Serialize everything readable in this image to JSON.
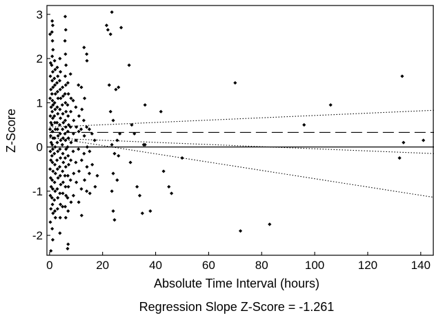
{
  "chart_data": {
    "type": "scatter",
    "title": "",
    "xlabel": "Absolute Time Interval (hours)",
    "ylabel": "Z-Score",
    "caption": "Regression Slope Z-Score = -1.261",
    "xlim": [
      -1,
      145
    ],
    "ylim": [
      -2.45,
      3.2
    ],
    "x_ticks": [
      0,
      20,
      40,
      60,
      80,
      100,
      120,
      140
    ],
    "y_ticks": [
      -2,
      -1,
      0,
      1,
      2,
      3
    ],
    "grid": false,
    "legend": "none",
    "marker_color": "#000000",
    "series": [
      {
        "points": [
          [
            0.2,
            2.55
          ],
          [
            0.4,
            1.9
          ],
          [
            0.3,
            1.6
          ],
          [
            0.5,
            1.3
          ],
          [
            0.2,
            1.1
          ],
          [
            0.6,
            0.9
          ],
          [
            0.3,
            0.7
          ],
          [
            0.5,
            0.55
          ],
          [
            0.2,
            0.4
          ],
          [
            0.4,
            0.25
          ],
          [
            0.6,
            0.1
          ],
          [
            0.3,
            -0.1
          ],
          [
            0.5,
            -0.3
          ],
          [
            0.2,
            -0.5
          ],
          [
            0.4,
            -0.7
          ],
          [
            0.6,
            -0.9
          ],
          [
            0.3,
            -1.1
          ],
          [
            0.5,
            -1.4
          ],
          [
            0.3,
            -1.7
          ],
          [
            0.5,
            -2.35
          ],
          [
            1.0,
            2.85
          ],
          [
            1.2,
            2.75
          ],
          [
            0.9,
            2.6
          ],
          [
            1.1,
            2.4
          ],
          [
            1.3,
            2.2
          ],
          [
            1.0,
            2.05
          ],
          [
            0.8,
            1.85
          ],
          [
            1.2,
            1.7
          ],
          [
            1.0,
            1.5
          ],
          [
            1.3,
            1.35
          ],
          [
            0.9,
            1.2
          ],
          [
            1.1,
            1.05
          ],
          [
            1.3,
            0.95
          ],
          [
            1.0,
            0.8
          ],
          [
            1.2,
            0.65
          ],
          [
            0.9,
            0.5
          ],
          [
            1.1,
            0.35
          ],
          [
            1.3,
            0.2
          ],
          [
            1.0,
            0.05
          ],
          [
            1.2,
            -0.05
          ],
          [
            0.9,
            -0.2
          ],
          [
            1.1,
            -0.35
          ],
          [
            1.3,
            -0.55
          ],
          [
            1.0,
            -0.75
          ],
          [
            1.2,
            -0.95
          ],
          [
            0.9,
            -1.15
          ],
          [
            1.1,
            -1.3
          ],
          [
            1.3,
            -1.5
          ],
          [
            1.0,
            -1.85
          ],
          [
            1.2,
            -2.1
          ],
          [
            1.9,
            1.95
          ],
          [
            2.1,
            1.75
          ],
          [
            1.8,
            1.55
          ],
          [
            2.0,
            1.4
          ],
          [
            2.2,
            1.2
          ],
          [
            1.9,
            1.0
          ],
          [
            2.1,
            0.85
          ],
          [
            1.8,
            0.7
          ],
          [
            2.0,
            0.55
          ],
          [
            2.2,
            0.4
          ],
          [
            1.9,
            0.2
          ],
          [
            2.1,
            0.0
          ],
          [
            1.8,
            -0.15
          ],
          [
            2.0,
            -0.4
          ],
          [
            2.2,
            -0.6
          ],
          [
            1.9,
            -0.8
          ],
          [
            2.1,
            -1.0
          ],
          [
            1.8,
            -1.2
          ],
          [
            2.0,
            -1.45
          ],
          [
            2.2,
            -1.6
          ],
          [
            2.9,
            1.8
          ],
          [
            3.1,
            1.6
          ],
          [
            2.8,
            1.45
          ],
          [
            3.0,
            1.25
          ],
          [
            3.2,
            1.1
          ],
          [
            2.9,
            0.9
          ],
          [
            3.1,
            0.75
          ],
          [
            2.8,
            0.55
          ],
          [
            3.0,
            0.4
          ],
          [
            3.2,
            0.25
          ],
          [
            2.9,
            0.1
          ],
          [
            3.1,
            -0.1
          ],
          [
            2.8,
            -0.3
          ],
          [
            3.0,
            -0.5
          ],
          [
            3.2,
            -0.7
          ],
          [
            2.9,
            -0.95
          ],
          [
            3.1,
            -1.15
          ],
          [
            3.0,
            -1.4
          ],
          [
            3.9,
            2.0
          ],
          [
            4.1,
            1.7
          ],
          [
            3.8,
            1.5
          ],
          [
            4.0,
            1.3
          ],
          [
            4.2,
            1.1
          ],
          [
            3.9,
            0.85
          ],
          [
            4.1,
            0.65
          ],
          [
            3.8,
            0.5
          ],
          [
            4.0,
            0.3
          ],
          [
            4.2,
            0.15
          ],
          [
            3.9,
            -0.05
          ],
          [
            4.1,
            -0.25
          ],
          [
            3.8,
            -0.45
          ],
          [
            4.0,
            -0.65
          ],
          [
            4.2,
            -0.85
          ],
          [
            3.9,
            -1.05
          ],
          [
            4.1,
            -1.3
          ],
          [
            4.0,
            -1.6
          ],
          [
            3.9,
            -1.95
          ],
          [
            4.9,
            1.35
          ],
          [
            5.1,
            1.15
          ],
          [
            4.8,
            0.95
          ],
          [
            5.0,
            0.75
          ],
          [
            5.2,
            0.55
          ],
          [
            4.9,
            0.4
          ],
          [
            5.1,
            0.2
          ],
          [
            4.8,
            0.05
          ],
          [
            5.0,
            -0.15
          ],
          [
            5.2,
            -0.35
          ],
          [
            4.9,
            -0.55
          ],
          [
            5.1,
            -0.8
          ],
          [
            5.0,
            -1.05
          ],
          [
            4.9,
            -1.35
          ],
          [
            5.9,
            2.95
          ],
          [
            6.1,
            2.65
          ],
          [
            5.8,
            2.4
          ],
          [
            6.0,
            2.1
          ],
          [
            6.2,
            1.85
          ],
          [
            5.9,
            1.6
          ],
          [
            6.1,
            1.4
          ],
          [
            5.8,
            1.2
          ],
          [
            6.0,
            1.0
          ],
          [
            6.2,
            0.8
          ],
          [
            5.9,
            0.6
          ],
          [
            6.1,
            0.45
          ],
          [
            5.8,
            0.3
          ],
          [
            6.0,
            0.15
          ],
          [
            6.2,
            -0.05
          ],
          [
            5.9,
            -0.25
          ],
          [
            6.1,
            -0.45
          ],
          [
            5.8,
            -0.65
          ],
          [
            6.0,
            -0.9
          ],
          [
            6.2,
            -1.1
          ],
          [
            5.9,
            -1.35
          ],
          [
            6.1,
            -1.6
          ],
          [
            6.9,
            1.45
          ],
          [
            7.1,
            1.2
          ],
          [
            6.8,
            0.95
          ],
          [
            7.0,
            0.7
          ],
          [
            7.2,
            0.5
          ],
          [
            6.9,
            0.35
          ],
          [
            7.1,
            0.2
          ],
          [
            6.8,
            0.0
          ],
          [
            7.0,
            -0.2
          ],
          [
            7.2,
            -0.4
          ],
          [
            6.9,
            -0.65
          ],
          [
            7.1,
            -0.9
          ],
          [
            6.8,
            -1.15
          ],
          [
            7.0,
            -1.45
          ],
          [
            7.0,
            -2.2
          ],
          [
            6.8,
            -2.3
          ],
          [
            7.9,
            1.65
          ],
          [
            8.1,
            1.1
          ],
          [
            8.0,
            0.8
          ],
          [
            7.9,
            0.45
          ],
          [
            8.1,
            0.1
          ],
          [
            8.0,
            -0.3
          ],
          [
            7.9,
            -0.75
          ],
          [
            8.1,
            -1.25
          ],
          [
            8.9,
            1.05
          ],
          [
            9.1,
            0.6
          ],
          [
            9.0,
            0.3
          ],
          [
            8.9,
            -0.1
          ],
          [
            9.1,
            -0.6
          ],
          [
            9.0,
            -1.1
          ],
          [
            9.9,
            0.9
          ],
          [
            10.1,
            0.45
          ],
          [
            10.0,
            0.15
          ],
          [
            9.9,
            -0.35
          ],
          [
            10.1,
            -0.8
          ],
          [
            10.9,
            1.4
          ],
          [
            11.1,
            0.7
          ],
          [
            11.0,
            0.35
          ],
          [
            10.9,
            -0.05
          ],
          [
            11.1,
            -0.55
          ],
          [
            11.0,
            -1.25
          ],
          [
            12.0,
            1.35
          ],
          [
            12.2,
            0.85
          ],
          [
            11.9,
            0.4
          ],
          [
            12.1,
            -0.3
          ],
          [
            12.0,
            -0.95
          ],
          [
            12.1,
            -1.55
          ],
          [
            13.0,
            2.25
          ],
          [
            13.2,
            1.1
          ],
          [
            12.9,
            0.6
          ],
          [
            13.1,
            0.25
          ],
          [
            13.0,
            -0.15
          ],
          [
            13.2,
            -0.75
          ],
          [
            14.0,
            2.1
          ],
          [
            14.1,
            1.95
          ],
          [
            14.0,
            0.45
          ],
          [
            14.2,
            0.0
          ],
          [
            14.1,
            -0.45
          ],
          [
            14.0,
            -1.0
          ],
          [
            15.0,
            0.4
          ],
          [
            15.1,
            -0.1
          ],
          [
            15.0,
            -0.6
          ],
          [
            15.2,
            -1.05
          ],
          [
            16.0,
            0.3
          ],
          [
            16.1,
            -0.4
          ],
          [
            17.0,
            0.15
          ],
          [
            17.2,
            -0.9
          ],
          [
            18.0,
            -0.65
          ],
          [
            21.5,
            2.75
          ],
          [
            22.0,
            2.65
          ],
          [
            22.5,
            1.4
          ],
          [
            23.5,
            3.05
          ],
          [
            23.0,
            2.55
          ],
          [
            23.0,
            0.8
          ],
          [
            24.0,
            0.6
          ],
          [
            23.5,
            0.05
          ],
          [
            24.5,
            -0.15
          ],
          [
            24.0,
            -0.6
          ],
          [
            23.5,
            -1.0
          ],
          [
            24.0,
            -1.45
          ],
          [
            24.5,
            -1.65
          ],
          [
            25.0,
            1.3
          ],
          [
            26.0,
            1.35
          ],
          [
            27.0,
            2.7
          ],
          [
            26.5,
            0.3
          ],
          [
            25.5,
            0.15
          ],
          [
            26.0,
            -0.2
          ],
          [
            25.5,
            -0.75
          ],
          [
            30.0,
            1.85
          ],
          [
            31.0,
            0.5
          ],
          [
            32.0,
            0.3
          ],
          [
            30.5,
            -0.35
          ],
          [
            33.0,
            -0.9
          ],
          [
            34.0,
            -1.1
          ],
          [
            35.0,
            -1.5
          ],
          [
            36.0,
            0.95
          ],
          [
            35.5,
            0.05
          ],
          [
            36.0,
            0.05
          ],
          [
            38.0,
            -1.45
          ],
          [
            42.0,
            0.8
          ],
          [
            43.0,
            -0.55
          ],
          [
            45.0,
            -0.9
          ],
          [
            46.0,
            -1.05
          ],
          [
            50.0,
            -0.25
          ],
          [
            70.0,
            1.45
          ],
          [
            72.0,
            -1.9
          ],
          [
            83.0,
            -1.75
          ],
          [
            96.0,
            0.5
          ],
          [
            106.0,
            0.95
          ],
          [
            132.0,
            -0.25
          ],
          [
            133.0,
            1.6
          ],
          [
            133.5,
            0.1
          ],
          [
            141.0,
            0.15
          ]
        ]
      }
    ],
    "lines": [
      {
        "style": "dashed",
        "x": [
          0,
          145
        ],
        "y": [
          0.33,
          0.33
        ]
      },
      {
        "style": "solid",
        "x": [
          -1,
          145
        ],
        "y": [
          0,
          0
        ]
      },
      {
        "style": "dotted",
        "x": [
          0,
          145
        ],
        "y": [
          0.45,
          0.83
        ]
      },
      {
        "style": "dotted",
        "x": [
          0,
          145
        ],
        "y": [
          0.2,
          -0.15
        ]
      },
      {
        "style": "dotted",
        "x": [
          0,
          145
        ],
        "y": [
          0.22,
          -1.14
        ]
      }
    ]
  }
}
